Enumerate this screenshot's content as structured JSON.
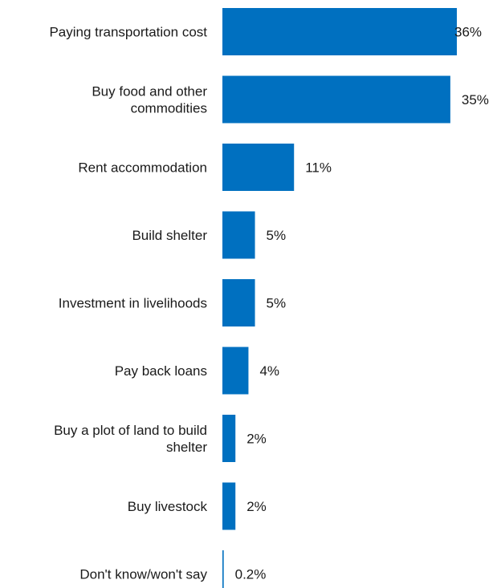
{
  "chart_data": {
    "type": "bar",
    "orientation": "horizontal",
    "bar_color": "#0070c0",
    "categories": [
      [
        "Paying transportation cost"
      ],
      [
        "Buy food and other",
        "commodities"
      ],
      [
        "Rent accommodation"
      ],
      [
        "Build shelter"
      ],
      [
        "Investment in livelihoods"
      ],
      [
        "Pay back loans"
      ],
      [
        "Buy a plot of land to build",
        "shelter"
      ],
      [
        "Buy livestock"
      ],
      [
        "Don't know/won't say"
      ]
    ],
    "values": [
      36,
      35,
      11,
      5,
      5,
      4,
      2,
      2,
      0.2
    ],
    "value_labels": [
      "36%",
      "35%",
      "11%",
      "5%",
      "5%",
      "4%",
      "2%",
      "2%",
      "0.2%"
    ],
    "xlim": [
      0,
      36
    ],
    "grid": false,
    "legend": "none"
  }
}
